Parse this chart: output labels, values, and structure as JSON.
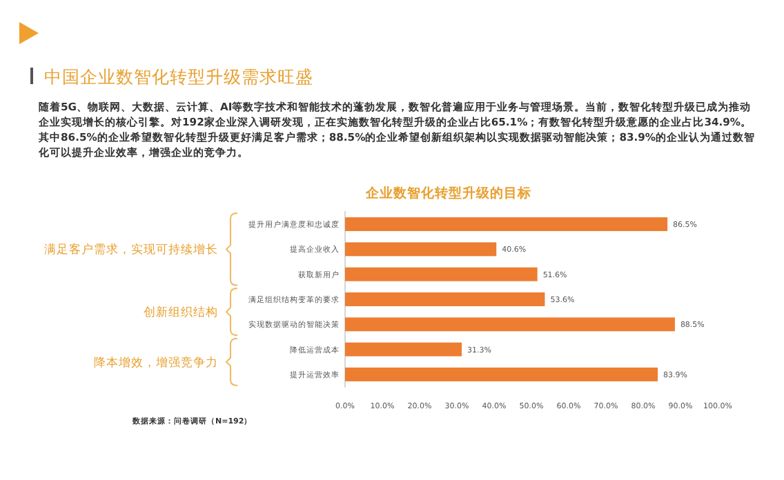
{
  "chart_data": {
    "type": "bar",
    "orientation": "horizontal",
    "title": "中国企业数智化转型升级需求旺盛",
    "subtitle": "企业数智化转型升级的目标",
    "categories": [
      "提升用户满意度和忠诚度",
      "提高企业收入",
      "获取新用户",
      "满足组织结构变革的要求",
      "实现数据驱动的智能决策",
      "降低运营成本",
      "提升运营效率"
    ],
    "values": [
      86.5,
      40.6,
      51.6,
      53.6,
      88.5,
      31.3,
      83.9
    ],
    "value_labels": [
      "86.5%",
      "40.6%",
      "51.6%",
      "53.6%",
      "88.5%",
      "31.3%",
      "83.9%"
    ],
    "color": "#ed7d31",
    "xlim": [
      0,
      100
    ],
    "xticks": [
      {
        "value": 0,
        "label": "0.0%"
      },
      {
        "value": 10,
        "label": "10.0%"
      },
      {
        "value": 20,
        "label": "20.0%"
      },
      {
        "value": 30,
        "label": "30.0%"
      },
      {
        "value": 40,
        "label": "40.0%"
      },
      {
        "value": 50,
        "label": "50.0%"
      },
      {
        "value": 60,
        "label": "60.0%"
      },
      {
        "value": 70,
        "label": "70.0%"
      },
      {
        "value": 80,
        "label": "80.0%"
      },
      {
        "value": 90,
        "label": "90.0%"
      },
      {
        "value": 100,
        "label": "100.0%"
      }
    ],
    "grid": false,
    "annotations": [
      "随着5G、物联网、大数据、云计算、AI等数字技术和智能技术的蓬勃发展，数智化普遍应用于业务与管理场景。当前，数智化转型升级已成为推动企业实现增长的核心引擎。对192家企业深入调研发现，正在实施数智化转型升级的企业占比65.1%；有数智化转型升级意愿的企业占比34.9%。其中86.5%的企业希望数智化转型升级更好满足客户需求；88.5%的企业希望创新组织架构以实现数据驱动智能决策；83.9%的企业认为通过数智化可以提升企业效率，增强企业的竞争力。",
      "满足客户需求，实现可持续增长",
      "创新组织结构",
      "降本增效，增强竞争力",
      "数据来源：问卷调研（N=192）"
    ]
  }
}
